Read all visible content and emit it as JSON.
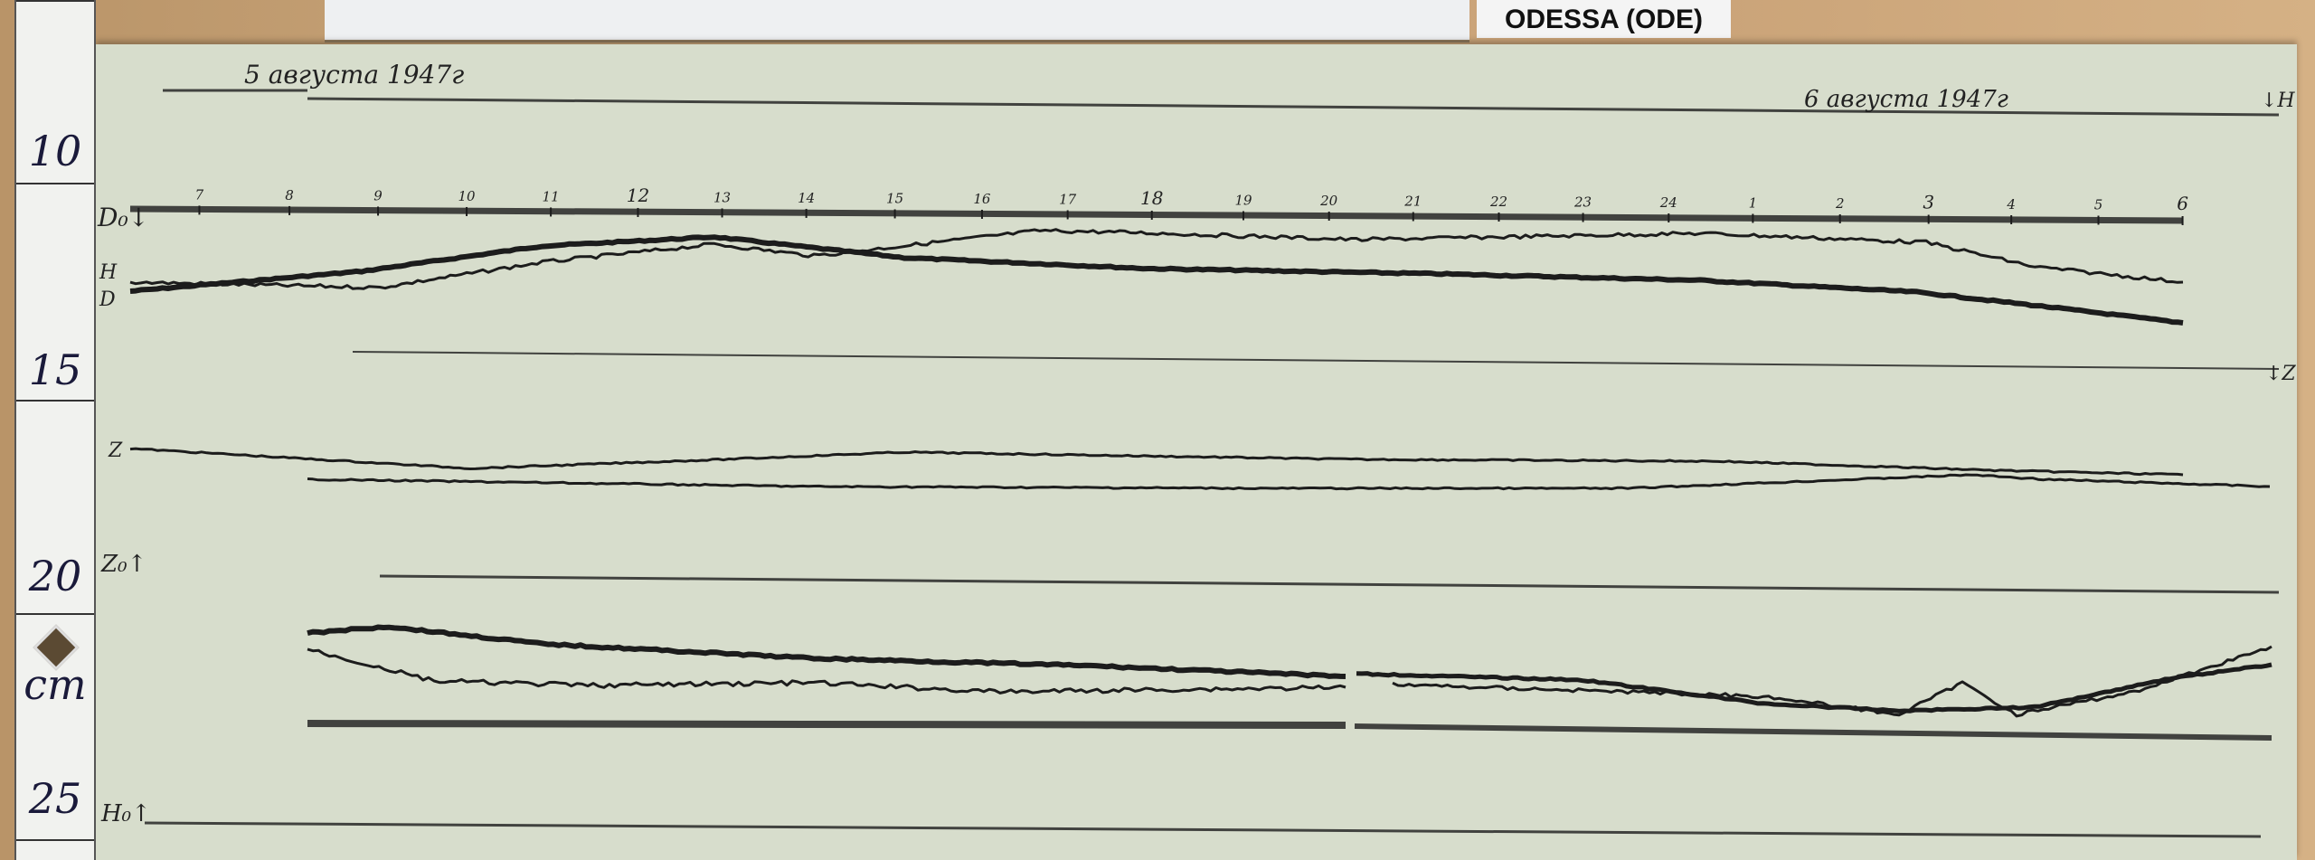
{
  "station_label": "ODESSA (ODE)",
  "ruler": {
    "marks": [
      "10",
      "15",
      "20",
      "25"
    ],
    "unit": "cm"
  },
  "dates": {
    "start": "5 августа 1947г",
    "end": "6 августа 1947г"
  },
  "hour_ticks": [
    "7",
    "8",
    "9",
    "10",
    "11",
    "12",
    "13",
    "14",
    "15",
    "16",
    "17",
    "18",
    "19",
    "20",
    "21",
    "22",
    "23",
    "24",
    "1",
    "2",
    "3",
    "4",
    "5",
    "6"
  ],
  "trace_labels": {
    "d0": "D₀↓",
    "h": "H",
    "d": "D",
    "z": "Z",
    "z0": "Z₀↑",
    "h0": "H₀↑",
    "h_right": "↓H",
    "z_right": "↓Z"
  },
  "colors": {
    "paper": "#d7ddcc",
    "ink": "#1c1c1c",
    "wood": "#c8a478"
  }
}
